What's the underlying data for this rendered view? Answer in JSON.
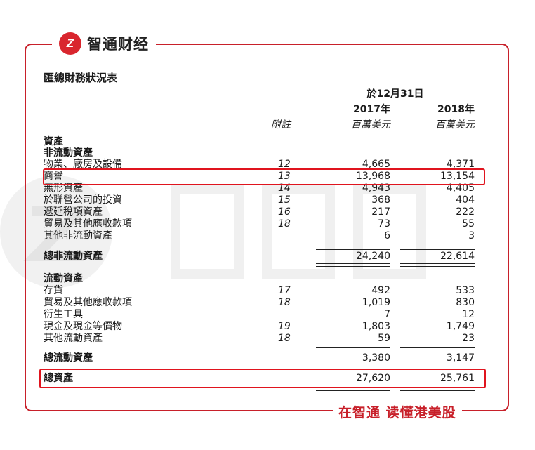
{
  "brand": {
    "logo_mark": "Z",
    "logo_text": "智通财经",
    "slogan": "在智通 读懂港美股",
    "watermark": "智通财经",
    "accent": "#c8202a"
  },
  "document": {
    "title": "匯總財務狀況表",
    "period_header": "於12月31日",
    "columns": {
      "note": "附註",
      "year1": "2017年",
      "year2": "2018年",
      "unit1": "百萬美元",
      "unit2": "百萬美元"
    },
    "rows": [
      {
        "label": "資產",
        "bold": true
      },
      {
        "label": "非流動資產",
        "bold": true
      },
      {
        "label": "物業、廠房及設備",
        "note": "12",
        "v2017": "4,665",
        "v2018": "4,371"
      },
      {
        "label": "商譽",
        "note": "13",
        "v2017": "13,968",
        "v2018": "13,154",
        "highlight": true
      },
      {
        "label": "無形資產",
        "note": "14",
        "v2017": "4,943",
        "v2018": "4,405"
      },
      {
        "label": "於聯營公司的投資",
        "note": "15",
        "v2017": "368",
        "v2018": "404"
      },
      {
        "label": "遞延稅項資產",
        "note": "16",
        "v2017": "217",
        "v2018": "222"
      },
      {
        "label": "貿易及其他應收款項",
        "note": "18",
        "v2017": "73",
        "v2018": "55"
      },
      {
        "label": "其他非流動資產",
        "v2017": "6",
        "v2018": "3"
      },
      {
        "label": "總非流動資產",
        "bold": true,
        "v2017": "24,240",
        "v2018": "22,614"
      },
      {
        "label": "流動資產",
        "bold": true
      },
      {
        "label": "存貨",
        "note": "17",
        "v2017": "492",
        "v2018": "533"
      },
      {
        "label": "貿易及其他應收款項",
        "note": "18",
        "v2017": "1,019",
        "v2018": "830"
      },
      {
        "label": "衍生工具",
        "v2017": "7",
        "v2018": "12"
      },
      {
        "label": "現金及現金等價物",
        "note": "19",
        "v2017": "1,803",
        "v2018": "1,749"
      },
      {
        "label": "其他流動資產",
        "note": "18",
        "v2017": "59",
        "v2018": "23"
      },
      {
        "label": "總流動資產",
        "bold": true,
        "v2017": "3,380",
        "v2018": "3,147"
      },
      {
        "label": "總資產",
        "bold": true,
        "v2017": "27,620",
        "v2018": "25,761",
        "highlight": true
      }
    ]
  }
}
